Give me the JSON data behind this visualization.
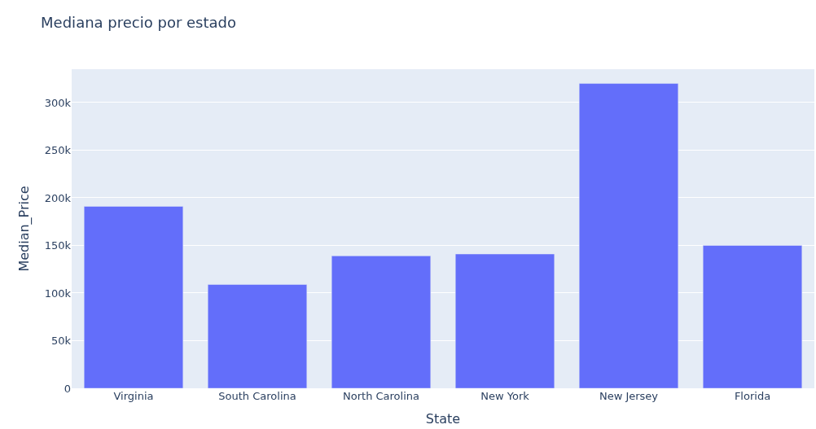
{
  "chart_data": {
    "type": "bar",
    "title": "Mediana precio por estado",
    "xlabel": "State",
    "ylabel": "Median_Price",
    "categories": [
      "Virginia",
      "South Carolina",
      "North Carolina",
      "New York",
      "New Jersey",
      "Florida"
    ],
    "values": [
      191000,
      109000,
      139000,
      141000,
      320000,
      150000
    ],
    "color": "#636efa",
    "ylim": [
      0,
      335000
    ],
    "yticks": [
      {
        "value": 0,
        "label": "0"
      },
      {
        "value": 50000,
        "label": "50k"
      },
      {
        "value": 100000,
        "label": "100k"
      },
      {
        "value": 150000,
        "label": "150k"
      },
      {
        "value": 200000,
        "label": "200k"
      },
      {
        "value": 250000,
        "label": "250k"
      },
      {
        "value": 300000,
        "label": "300k"
      }
    ],
    "grid": "y"
  }
}
